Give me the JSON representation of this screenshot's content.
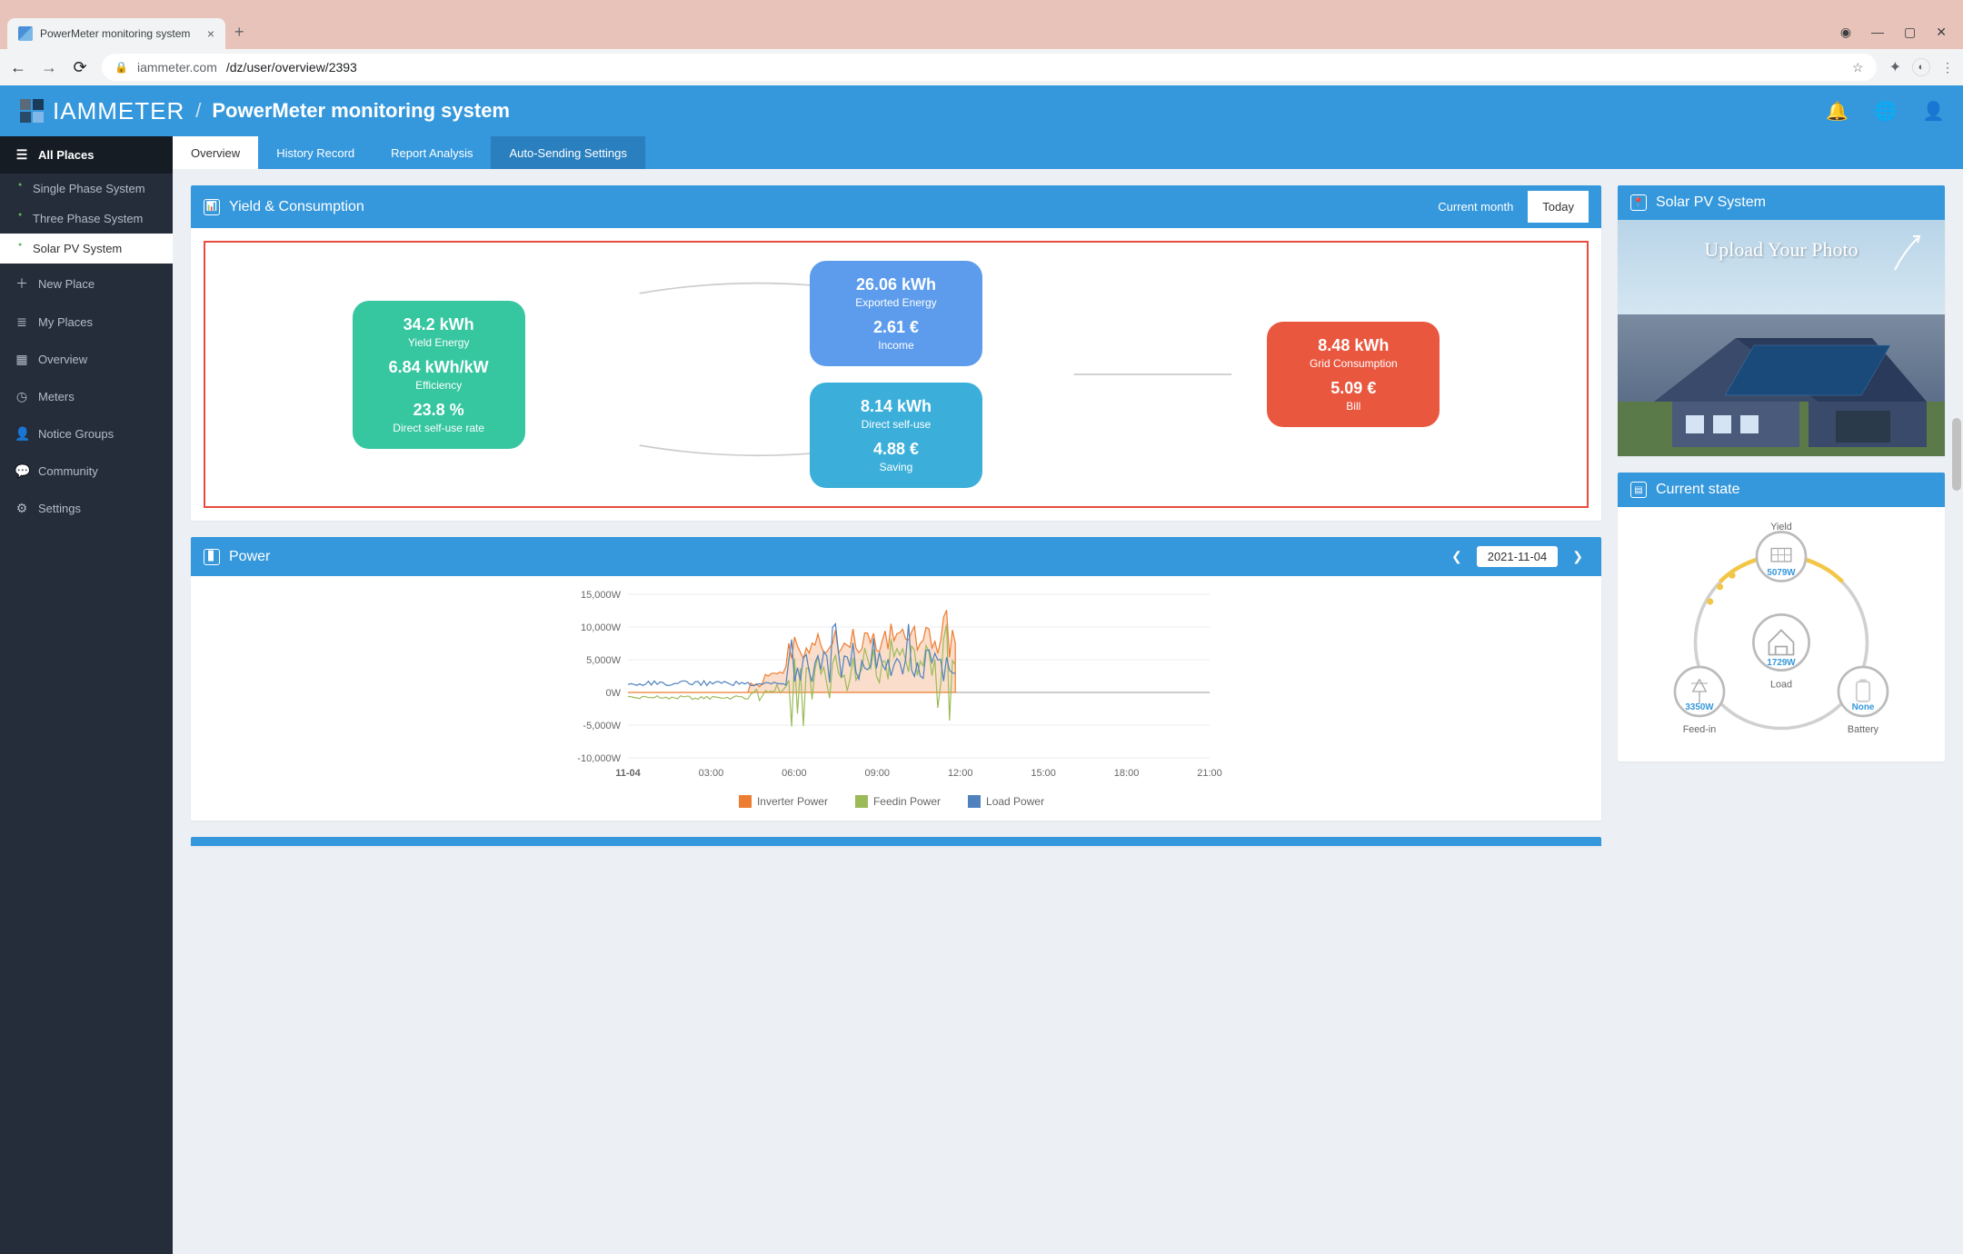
{
  "browser": {
    "tab_title": "PowerMeter monitoring system",
    "url_host": "iammeter.com",
    "url_path": "/dz/user/overview/2393"
  },
  "header": {
    "logo_text": "IAMMETER",
    "app_title": "PowerMeter monitoring system"
  },
  "sidebar": {
    "all_places": "All Places",
    "places": [
      {
        "label": "Single Phase System"
      },
      {
        "label": "Three Phase System"
      },
      {
        "label": "Solar PV System"
      }
    ],
    "items": [
      {
        "icon": "plus",
        "label": "New Place"
      },
      {
        "icon": "list",
        "label": "My Places"
      },
      {
        "icon": "grid",
        "label": "Overview"
      },
      {
        "icon": "gauge",
        "label": "Meters"
      },
      {
        "icon": "user",
        "label": "Notice Groups"
      },
      {
        "icon": "chat",
        "label": "Community"
      },
      {
        "icon": "gear",
        "label": "Settings"
      }
    ]
  },
  "tabs": [
    {
      "label": "Overview",
      "state": "active"
    },
    {
      "label": "History Record",
      "state": ""
    },
    {
      "label": "Report Analysis",
      "state": ""
    },
    {
      "label": "Auto-Sending Settings",
      "state": "highlight"
    }
  ],
  "yield": {
    "title": "Yield & Consumption",
    "periods": {
      "month": "Current month",
      "today": "Today"
    },
    "green": {
      "v1": "34.2 kWh",
      "l1": "Yield Energy",
      "v2": "6.84 kWh/kW",
      "l2": "Efficiency",
      "v3": "23.8 %",
      "l3": "Direct self-use rate"
    },
    "blue": {
      "v1": "26.06 kWh",
      "l1": "Exported Energy",
      "v2": "2.61 €",
      "l2": "Income"
    },
    "cyan": {
      "v1": "8.14 kWh",
      "l1": "Direct self-use",
      "v2": "4.88 €",
      "l2": "Saving"
    },
    "red": {
      "v1": "8.48 kWh",
      "l1": "Grid Consumption",
      "v2": "5.09 €",
      "l2": "Bill"
    }
  },
  "power": {
    "title": "Power",
    "date": "2021-11-04",
    "ylabels": [
      "15,000W",
      "10,000W",
      "5,000W",
      "0W",
      "-5,000W",
      "-10,000W"
    ],
    "xlabels": [
      "11-04",
      "03:00",
      "06:00",
      "09:00",
      "12:00",
      "15:00",
      "18:00",
      "21:00"
    ],
    "ylim": [
      -10000,
      15000
    ],
    "series": {
      "inverter": {
        "label": "Inverter Power",
        "color": "#ed7d31"
      },
      "feedin": {
        "label": "Feedin Power",
        "color": "#9bbb59"
      },
      "load": {
        "label": "Load Power",
        "color": "#4f81bd"
      }
    }
  },
  "pv": {
    "title": "Solar PV System",
    "photo_text": "Upload Your Photo"
  },
  "state": {
    "title": "Current state",
    "yield": {
      "label": "Yield",
      "value": "5079W"
    },
    "load": {
      "label": "Load",
      "value": "1729W"
    },
    "feedin": {
      "label": "Feed-in",
      "value": "3350W"
    },
    "battery": {
      "label": "Battery",
      "value": "None"
    }
  },
  "colors": {
    "primary": "#3598dc",
    "sidebar": "#252d3a",
    "green": "#36c6a0",
    "blue": "#5d9cec",
    "cyan": "#3bafda",
    "red": "#e9573f"
  }
}
